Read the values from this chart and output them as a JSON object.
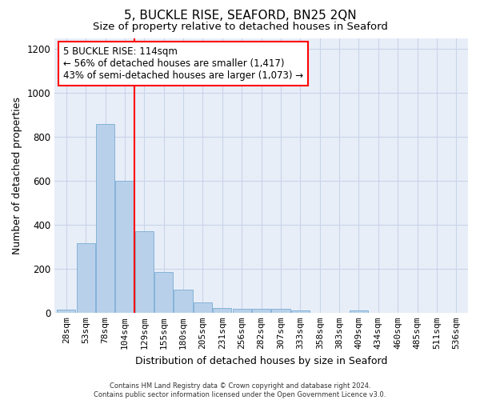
{
  "title": "5, BUCKLE RISE, SEAFORD, BN25 2QN",
  "subtitle": "Size of property relative to detached houses in Seaford",
  "xlabel": "Distribution of detached houses by size in Seaford",
  "ylabel": "Number of detached properties",
  "footer_line1": "Contains HM Land Registry data © Crown copyright and database right 2024.",
  "footer_line2": "Contains public sector information licensed under the Open Government Licence v3.0.",
  "categories": [
    "28sqm",
    "53sqm",
    "78sqm",
    "104sqm",
    "129sqm",
    "155sqm",
    "180sqm",
    "205sqm",
    "231sqm",
    "256sqm",
    "282sqm",
    "307sqm",
    "333sqm",
    "358sqm",
    "383sqm",
    "409sqm",
    "434sqm",
    "460sqm",
    "485sqm",
    "511sqm",
    "536sqm"
  ],
  "values": [
    15,
    315,
    860,
    600,
    370,
    185,
    105,
    47,
    20,
    17,
    17,
    17,
    10,
    0,
    0,
    12,
    0,
    0,
    0,
    0,
    0
  ],
  "bar_color": "#b8d0ea",
  "bar_edge_color": "#7aadd4",
  "red_line_x": 3.5,
  "annotation_text": "5 BUCKLE RISE: 114sqm\n← 56% of detached houses are smaller (1,417)\n43% of semi-detached houses are larger (1,073) →",
  "ylim": [
    0,
    1250
  ],
  "yticks": [
    0,
    200,
    400,
    600,
    800,
    1000,
    1200
  ],
  "background_color": "#ffffff",
  "plot_bg_color": "#e8eef8",
  "grid_color": "#c8d4e8",
  "title_fontsize": 11,
  "subtitle_fontsize": 9.5,
  "axis_label_fontsize": 9,
  "tick_fontsize": 8,
  "annotation_fontsize": 8.5,
  "footer_fontsize": 6
}
